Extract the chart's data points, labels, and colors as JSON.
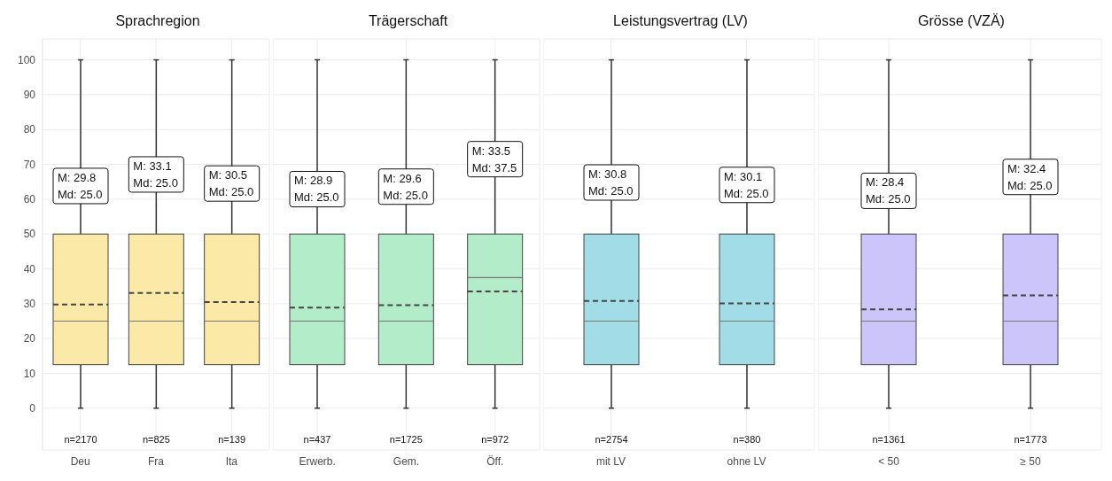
{
  "chart_data": [
    {
      "type": "box",
      "title": "Sprachregion",
      "categories": [
        "Deu",
        "Fra",
        "Ita"
      ],
      "color": "#fbe9a8",
      "ylim": [
        -12,
        106
      ],
      "yticks": [
        0,
        10,
        20,
        30,
        40,
        50,
        60,
        70,
        80,
        90,
        100
      ],
      "grid": true,
      "boxes": [
        {
          "low": 0,
          "q1": 12.5,
          "median": 25,
          "q3": 50,
          "high": 100,
          "mean": 29.8
        },
        {
          "low": 0,
          "q1": 12.5,
          "median": 25,
          "q3": 50,
          "high": 100,
          "mean": 33.1
        },
        {
          "low": 0,
          "q1": 12.5,
          "median": 25,
          "q3": 50,
          "high": 100,
          "mean": 30.5
        }
      ],
      "annotations": [
        "M: 29.8\nMd: 25.0",
        "M: 33.1\nMd: 25.0",
        "M: 30.5\nMd: 25.0",
        "n=2170",
        "n=825",
        "n=139"
      ]
    },
    {
      "type": "box",
      "title": "Trägerschaft",
      "categories": [
        "Erwerb.",
        "Gem.",
        "Öff."
      ],
      "color": "#b3ecc9",
      "ylim": [
        -12,
        106
      ],
      "yticks": [
        0,
        10,
        20,
        30,
        40,
        50,
        60,
        70,
        80,
        90,
        100
      ],
      "grid": true,
      "tick_labels": "x",
      "boxes": [
        {
          "low": 0,
          "q1": 12.5,
          "median": 25,
          "q3": 50,
          "high": 100,
          "mean": 28.9
        },
        {
          "low": 0,
          "q1": 12.5,
          "median": 25,
          "q3": 50,
          "high": 100,
          "mean": 29.6
        },
        {
          "low": 0,
          "q1": 12.5,
          "median": 37.5,
          "q3": 50,
          "high": 100,
          "mean": 33.5
        }
      ],
      "annotations": [
        "M: 28.9\nMd: 25.0",
        "M: 29.6\nMd: 25.0",
        "M: 33.5\nMd: 37.5",
        "n=437",
        "n=1725",
        "n=972"
      ]
    },
    {
      "type": "box",
      "title": "Leistungsvertrag (LV)",
      "categories": [
        "mit LV",
        "ohne LV"
      ],
      "color": "#a2dce6",
      "ylim": [
        -12,
        106
      ],
      "yticks": [
        0,
        10,
        20,
        30,
        40,
        50,
        60,
        70,
        80,
        90,
        100
      ],
      "grid": true,
      "tick_labels": "x",
      "boxes": [
        {
          "low": 0,
          "q1": 12.5,
          "median": 25,
          "q3": 50,
          "high": 100,
          "mean": 30.8
        },
        {
          "low": 0,
          "q1": 12.5,
          "median": 25,
          "q3": 50,
          "high": 100,
          "mean": 30.1
        }
      ],
      "annotations": [
        "M: 30.8\nMd: 25.0",
        "M: 30.1\nMd: 25.0",
        "n=2754",
        "n=380"
      ]
    },
    {
      "type": "box",
      "title": "Grösse (VZÄ)",
      "categories": [
        "< 50",
        "≥ 50"
      ],
      "color": "#cbc5fa",
      "ylim": [
        -12,
        106
      ],
      "yticks": [
        0,
        10,
        20,
        30,
        40,
        50,
        60,
        70,
        80,
        90,
        100
      ],
      "grid": true,
      "tick_labels": "x",
      "boxes": [
        {
          "low": 0,
          "q1": 12.5,
          "median": 25,
          "q3": 50,
          "high": 100,
          "mean": 28.4
        },
        {
          "low": 0,
          "q1": 12.5,
          "median": 25,
          "q3": 50,
          "high": 100,
          "mean": 32.4
        }
      ],
      "annotations": [
        "M: 28.4\nMd: 25.0",
        "M: 32.4\nMd: 25.0",
        "n=1361",
        "n=1773"
      ]
    }
  ]
}
